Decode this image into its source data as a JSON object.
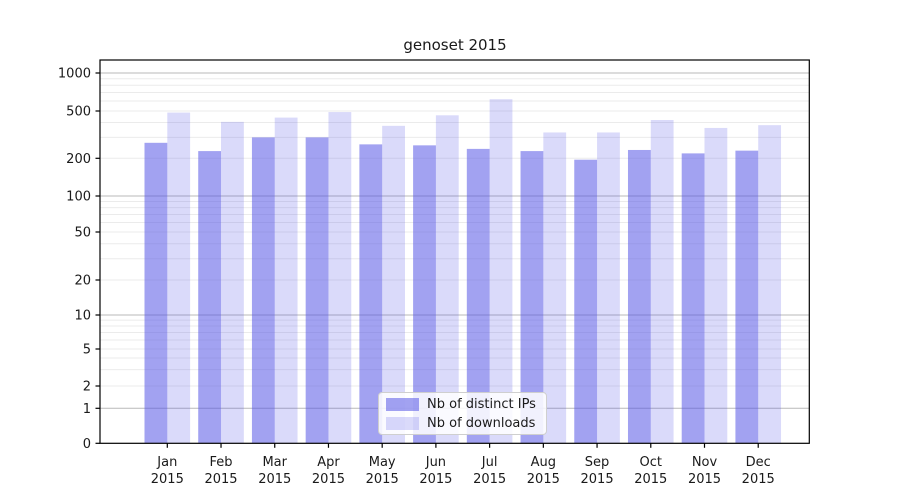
{
  "figure": {
    "title": "genoset 2015",
    "background": "#ffffff",
    "text_color": "#1a1a1a",
    "axis_color": "#000000",
    "grid_major_color": "#b9b9b9",
    "grid_minor_color": "#ebebeb",
    "series_colors": {
      "ips": "rgba(85,85,230,0.55)",
      "downloads": "rgba(85,85,230,0.22)"
    },
    "legend": [
      {
        "key": "ips",
        "label": "Nb of distinct IPs"
      },
      {
        "key": "downloads",
        "label": "Nb of downloads"
      }
    ],
    "y_tick_labels": [
      "0",
      "1",
      "2",
      "5",
      "10",
      "20",
      "50",
      "100",
      "200",
      "500",
      "1000"
    ],
    "month_labels": [
      "Jan",
      "Feb",
      "Mar",
      "Apr",
      "May",
      "Jun",
      "Jul",
      "Aug",
      "Sep",
      "Oct",
      "Nov",
      "Dec"
    ],
    "year_label": "2015"
  },
  "chart_data": {
    "type": "bar",
    "title": "genoset 2015",
    "categories": [
      "Jan 2015",
      "Feb 2015",
      "Mar 2015",
      "Apr 2015",
      "May 2015",
      "Jun 2015",
      "Jul 2015",
      "Aug 2015",
      "Sep 2015",
      "Oct 2015",
      "Nov 2015",
      "Dec 2015"
    ],
    "series": [
      {
        "name": "Nb of distinct IPs",
        "key": "ips",
        "values": [
          270,
          230,
          300,
          300,
          262,
          257,
          240,
          230,
          195,
          235,
          220,
          232
        ]
      },
      {
        "name": "Nb of downloads",
        "key": "downloads",
        "values": [
          485,
          405,
          440,
          490,
          375,
          460,
          620,
          330,
          330,
          420,
          360,
          380
        ]
      }
    ],
    "xlabel": "",
    "ylabel": "",
    "yscale": "symlog",
    "y_ticks": [
      0,
      1,
      2,
      5,
      10,
      20,
      50,
      100,
      200,
      500,
      1000
    ],
    "ylim": [
      0,
      1400
    ],
    "grid": true,
    "legend_position": "lower center"
  }
}
